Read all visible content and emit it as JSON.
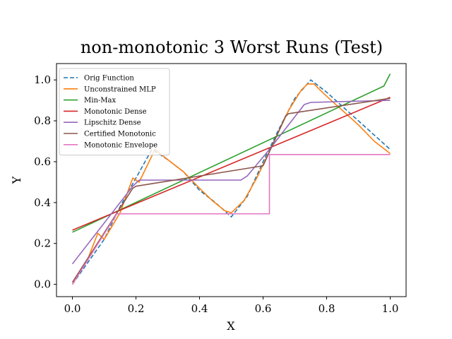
{
  "chart_data": {
    "type": "line",
    "title": "non-monotonic 3 Worst Runs (Test)",
    "xlabel": "X",
    "ylabel": "Y",
    "xlim": [
      -0.05,
      1.05
    ],
    "ylim": [
      -0.06,
      1.08
    ],
    "xticks": [
      0.0,
      0.2,
      0.4,
      0.6,
      0.8,
      1.0
    ],
    "xtick_labels": [
      "0.0",
      "0.2",
      "0.4",
      "0.6",
      "0.8",
      "1.0"
    ],
    "yticks": [
      0.0,
      0.2,
      0.4,
      0.6,
      0.8,
      1.0
    ],
    "ytick_labels": [
      "0.0",
      "0.2",
      "0.4",
      "0.6",
      "0.8",
      "1.0"
    ],
    "grid": false,
    "legend_position": "upper-left",
    "series": [
      {
        "name": "Orig Function",
        "color": "#1f77b4",
        "dashed": true,
        "x": [
          0.0,
          0.1,
          0.15,
          0.2,
          0.25,
          0.3,
          0.35,
          0.4,
          0.45,
          0.5,
          0.55,
          0.6,
          0.65,
          0.7,
          0.75,
          0.8,
          0.85,
          0.9,
          0.95,
          1.0
        ],
        "y": [
          0.0,
          0.22,
          0.38,
          0.52,
          0.66,
          0.61,
          0.55,
          0.46,
          0.4,
          0.33,
          0.43,
          0.6,
          0.76,
          0.91,
          1.0,
          0.94,
          0.87,
          0.8,
          0.73,
          0.66
        ]
      },
      {
        "name": "Unconstrained MLP",
        "color": "#ff7f0e",
        "dashed": false,
        "x": [
          0.0,
          0.05,
          0.08,
          0.1,
          0.15,
          0.19,
          0.21,
          0.26,
          0.3,
          0.35,
          0.4,
          0.44,
          0.48,
          0.5,
          0.54,
          0.58,
          0.62,
          0.68,
          0.72,
          0.74,
          0.76,
          0.8,
          0.85,
          0.9,
          0.95,
          1.0
        ],
        "y": [
          0.0,
          0.13,
          0.25,
          0.22,
          0.35,
          0.52,
          0.5,
          0.66,
          0.61,
          0.55,
          0.47,
          0.41,
          0.36,
          0.35,
          0.41,
          0.52,
          0.65,
          0.85,
          0.95,
          0.98,
          0.98,
          0.92,
          0.85,
          0.78,
          0.7,
          0.64
        ]
      },
      {
        "name": "Min-Max",
        "color": "#2ca02c",
        "dashed": false,
        "x": [
          0.0,
          0.98,
          1.0
        ],
        "y": [
          0.255,
          0.97,
          1.03
        ]
      },
      {
        "name": "Monotonic Dense",
        "color": "#d62728",
        "dashed": false,
        "x": [
          0.0,
          1.0
        ],
        "y": [
          0.265,
          0.915
        ]
      },
      {
        "name": "Lipschitz Dense",
        "color": "#9467bd",
        "dashed": false,
        "x": [
          0.0,
          0.19,
          0.21,
          0.53,
          0.55,
          0.62,
          0.73,
          0.75,
          1.0
        ],
        "y": [
          0.1,
          0.48,
          0.51,
          0.51,
          0.53,
          0.66,
          0.88,
          0.89,
          0.9
        ]
      },
      {
        "name": "Certified Monotonic",
        "color": "#8c564b",
        "dashed": false,
        "x": [
          0.0,
          0.19,
          0.2,
          0.6,
          0.67,
          0.68,
          1.0
        ],
        "y": [
          0.01,
          0.47,
          0.48,
          0.58,
          0.82,
          0.835,
          0.91
        ]
      },
      {
        "name": "Monotonic Envelope",
        "color": "#e377c2",
        "dashed": false,
        "x": [
          0.0,
          0.14,
          0.62,
          0.62,
          1.0
        ],
        "y": [
          0.0,
          0.345,
          0.345,
          0.635,
          0.635
        ]
      }
    ]
  }
}
